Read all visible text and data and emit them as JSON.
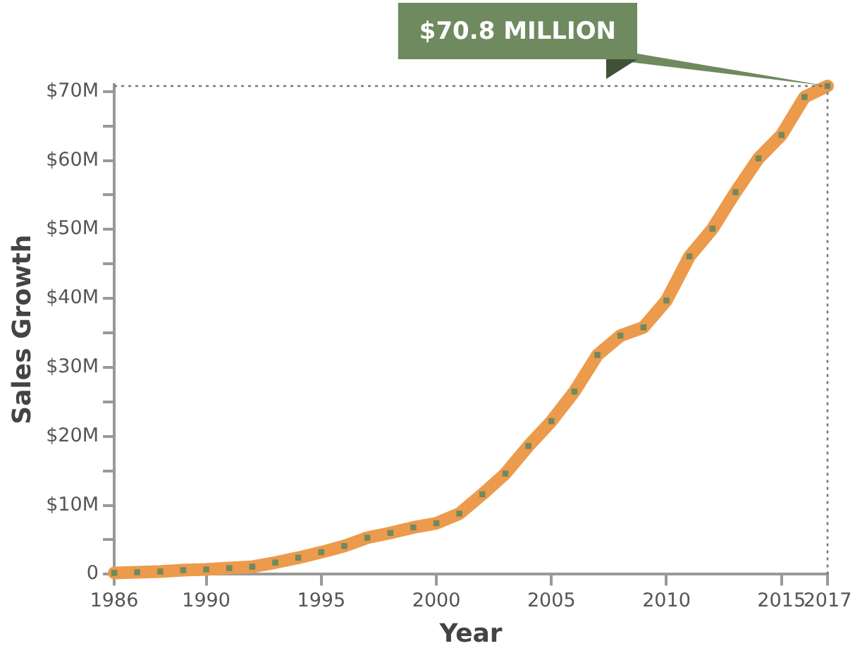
{
  "chart_data": {
    "type": "line",
    "xlabel": "Year",
    "ylabel": "Sales Growth",
    "x": [
      1986,
      1987,
      1988,
      1989,
      1990,
      1991,
      1992,
      1993,
      1994,
      1995,
      1996,
      1997,
      1998,
      1999,
      2000,
      2001,
      2002,
      2003,
      2004,
      2005,
      2006,
      2007,
      2008,
      2009,
      2010,
      2011,
      2012,
      2013,
      2014,
      2015,
      2016,
      2017
    ],
    "series": [
      {
        "color": "#ec9a4c",
        "colors": [
          "#6f8a5e",
          "#6f8a5e",
          "#6f8a5e",
          "#6f8a5e",
          "#6f8a5e",
          "#6f8a5e",
          "#6f8a5e",
          "#6f8a5e",
          "#6f8a5e",
          "#6f8a5e",
          "#6f8a5e",
          "#6f8a5e",
          "#6f8a5e",
          "#6f8a5e",
          "#6f8a5e",
          "#6f8a5e",
          "#6f8a5e",
          "#6f8a5e",
          "#6f8a5e",
          "#6f8a5e",
          "#6f8a5e",
          "#6f8a5e",
          "#6f8a5e",
          "#6f8a5e",
          "#6f8a5e",
          "#6f8a5e",
          "#6f8a5e",
          "#6f8a5e",
          "#6f8a5e",
          "#6f8a5e",
          "#6f8a5e",
          "#6f8a5e"
        ],
        "values": [
          0.2,
          0.3,
          0.4,
          0.6,
          0.7,
          0.9,
          1.1,
          1.7,
          2.4,
          3.2,
          4.1,
          5.3,
          6.0,
          6.8,
          7.4,
          8.8,
          11.6,
          14.6,
          18.6,
          22.2,
          26.5,
          31.8,
          34.6,
          35.8,
          39.7,
          46.1,
          50.1,
          55.4,
          60.3,
          63.7,
          69.2,
          70.8
        ]
      }
    ],
    "xlim": [
      1986,
      2017
    ],
    "xticks": [
      1986,
      1990,
      1995,
      2000,
      2005,
      2010,
      2015,
      2017
    ],
    "ylim": [
      0,
      71
    ],
    "yticks": [
      0,
      {
        "value": 5,
        "label": null
      },
      {
        "value": 10,
        "label": "$10M"
      },
      {
        "value": 15,
        "label": null
      },
      {
        "value": 20,
        "label": "$20M"
      },
      {
        "value": 25,
        "label": null
      },
      {
        "value": 30,
        "label": "$30M"
      },
      {
        "value": 35,
        "label": null
      },
      {
        "value": 40,
        "label": "$40M"
      },
      {
        "value": 45,
        "label": null
      },
      {
        "value": 50,
        "label": "$50M"
      },
      {
        "value": 55,
        "label": null
      },
      {
        "value": 60,
        "label": "$60M"
      },
      {
        "value": 65,
        "label": null
      },
      {
        "value": 70,
        "label": "$70M"
      }
    ],
    "ref_lines": [
      {
        "axis": "y",
        "value": 70.8,
        "color": "#777777",
        "line_style": "dotted"
      },
      {
        "axis": "x",
        "value": 2017,
        "color": "#777777",
        "line_style": "dotted"
      }
    ],
    "annotations": [
      {
        "text": "$70.8 MILLION",
        "x": 2017,
        "y": 70.8
      }
    ],
    "grid": false,
    "legend": false,
    "marker": "square",
    "line_style": "solid"
  }
}
